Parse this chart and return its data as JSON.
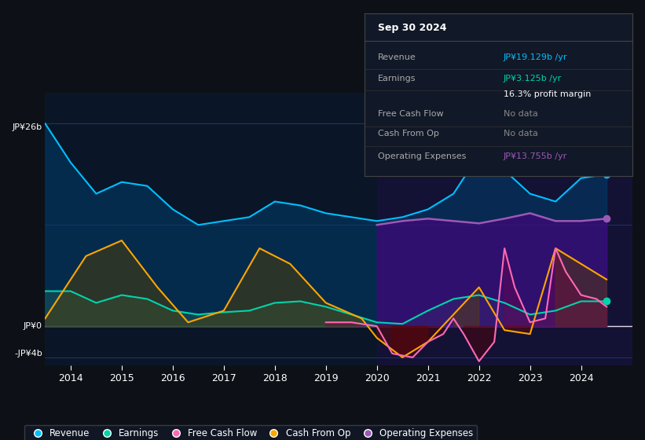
{
  "bg_color": "#0d1117",
  "plot_bg_color": "#0a1628",
  "grid_color": "#1e3a5f",
  "ylim_top": 30,
  "ylim_bottom": -5,
  "x_ticks": [
    2014,
    2015,
    2016,
    2017,
    2018,
    2019,
    2020,
    2021,
    2022,
    2023,
    2024
  ],
  "legend_items": [
    {
      "label": "Revenue",
      "color": "#00bfff"
    },
    {
      "label": "Earnings",
      "color": "#00d4aa"
    },
    {
      "label": "Free Cash Flow",
      "color": "#ff69b4"
    },
    {
      "label": "Cash From Op",
      "color": "#ffa500"
    },
    {
      "label": "Operating Expenses",
      "color": "#9b59b6"
    }
  ],
  "info_box": {
    "title": "Sep 30 2024",
    "rows": [
      {
        "label": "Revenue",
        "value": "JP¥19.129b /yr",
        "value_color": "#00bfff"
      },
      {
        "label": "Earnings",
        "value": "JP¥3.125b /yr",
        "value_color": "#00d4aa"
      },
      {
        "label": "",
        "value": "16.3% profit margin",
        "value_color": "#ffffff"
      },
      {
        "label": "Free Cash Flow",
        "value": "No data",
        "value_color": "#888888"
      },
      {
        "label": "Cash From Op",
        "value": "No data",
        "value_color": "#888888"
      },
      {
        "label": "Operating Expenses",
        "value": "JP¥13.755b /yr",
        "value_color": "#9b59b6"
      }
    ]
  },
  "revenue_x": [
    2013.5,
    2014.0,
    2014.5,
    2015.0,
    2015.5,
    2016.0,
    2016.5,
    2017.0,
    2017.5,
    2018.0,
    2018.5,
    2019.0,
    2019.5,
    2020.0,
    2020.5,
    2021.0,
    2021.5,
    2022.0,
    2022.5,
    2023.0,
    2023.5,
    2024.0,
    2024.5
  ],
  "revenue_y": [
    26,
    21,
    17,
    18.5,
    18,
    15,
    13,
    13.5,
    14,
    16,
    15.5,
    14.5,
    14,
    13.5,
    14,
    15,
    17,
    22,
    20,
    17,
    16,
    19,
    19.5
  ],
  "earnings_x": [
    2013.5,
    2014.0,
    2014.5,
    2015.0,
    2015.5,
    2016.0,
    2016.5,
    2017.0,
    2017.5,
    2018.0,
    2018.5,
    2019.0,
    2019.5,
    2020.0,
    2020.5,
    2021.0,
    2021.5,
    2022.0,
    2022.5,
    2023.0,
    2023.5,
    2024.0,
    2024.5
  ],
  "earnings_y": [
    4.5,
    4.5,
    3.0,
    4.0,
    3.5,
    2.0,
    1.5,
    1.8,
    2.0,
    3.0,
    3.2,
    2.5,
    1.5,
    0.5,
    0.3,
    2.0,
    3.5,
    4.0,
    3.0,
    1.5,
    2.0,
    3.2,
    3.2
  ],
  "cashfromop_x": [
    2013.5,
    2014.3,
    2015.0,
    2015.7,
    2016.3,
    2017.0,
    2017.7,
    2018.3,
    2019.0,
    2019.7,
    2020.0,
    2020.5,
    2021.0,
    2021.5,
    2022.0,
    2022.5,
    2023.0,
    2023.5,
    2024.0,
    2024.5
  ],
  "cashfromop_y": [
    1.0,
    9.0,
    11.0,
    5.0,
    0.5,
    2.0,
    10.0,
    8.0,
    3.0,
    1.0,
    -1.5,
    -4.0,
    -2.0,
    1.5,
    5.0,
    -0.5,
    -1.0,
    10.0,
    8.0,
    6.0
  ],
  "freecashflow_x": [
    2019.0,
    2019.5,
    2020.0,
    2020.3,
    2020.7,
    2021.0,
    2021.3,
    2021.5,
    2021.7,
    2022.0,
    2022.3,
    2022.5,
    2022.7,
    2023.0,
    2023.3,
    2023.5,
    2023.7,
    2024.0,
    2024.3,
    2024.5
  ],
  "freecashflow_y": [
    0.5,
    0.5,
    0,
    -3.5,
    -4.0,
    -2.0,
    -1.0,
    1.0,
    -1.0,
    -4.5,
    -2.0,
    10.0,
    5.0,
    0.5,
    1.0,
    10.0,
    7.0,
    4.0,
    3.5,
    2.5
  ],
  "opex_x": [
    2020.0,
    2020.5,
    2021.0,
    2021.5,
    2022.0,
    2022.5,
    2023.0,
    2023.5,
    2024.0,
    2024.5
  ],
  "opex_y": [
    13.0,
    13.5,
    13.8,
    13.5,
    13.2,
    13.8,
    14.5,
    13.5,
    13.5,
    13.8
  ],
  "highlight_start": 2020.0
}
